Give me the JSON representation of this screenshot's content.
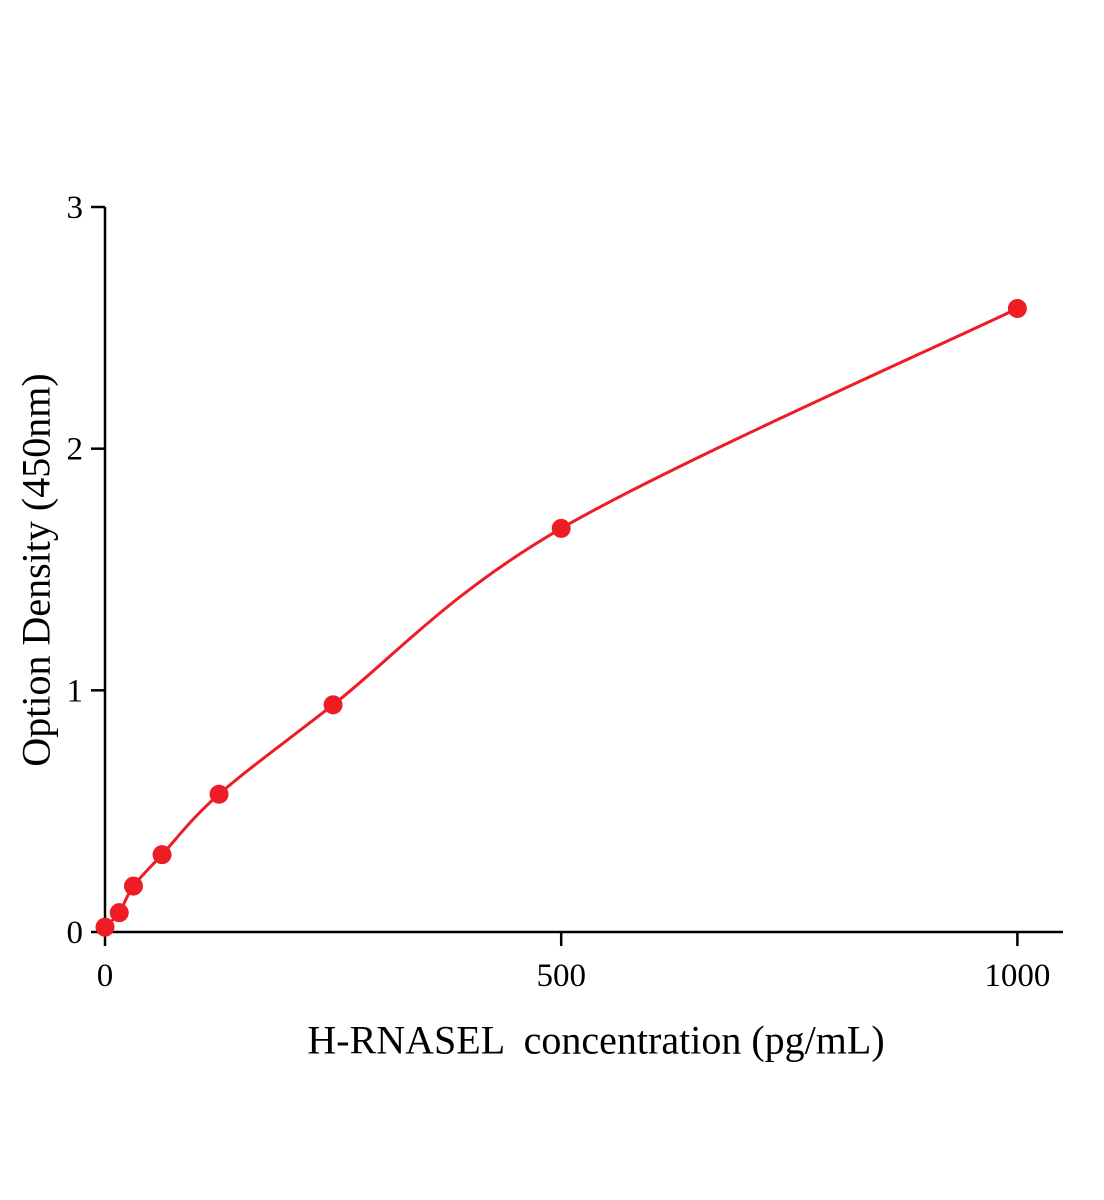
{
  "chart_data": {
    "type": "scatter",
    "subtype": "standard-curve-with-fitted-line",
    "title": "",
    "xlabel": "H-RNASEL  concentration (pg/mL)",
    "ylabel": "Option Density (450nm)",
    "x": [
      0,
      15.6,
      31.2,
      62.5,
      125,
      250,
      500,
      1000
    ],
    "y": [
      0.02,
      0.08,
      0.19,
      0.32,
      0.57,
      0.94,
      1.67,
      2.58
    ],
    "xlim": [
      0,
      1050
    ],
    "ylim": [
      0,
      3
    ],
    "x_ticks": [
      0,
      500,
      1000
    ],
    "y_ticks": [
      0,
      1,
      2,
      3
    ],
    "grid": false,
    "legend": "none",
    "line_color": "#ee1c25",
    "marker_color": "#ee1c25",
    "marker_shape": "circle",
    "axis_color": "#000000",
    "background": "#ffffff"
  }
}
